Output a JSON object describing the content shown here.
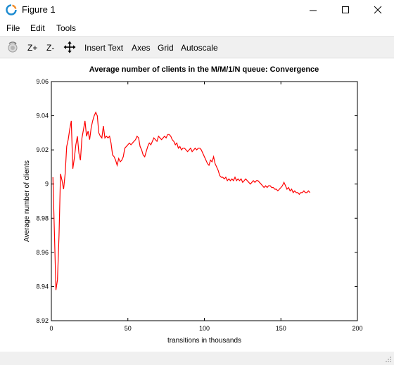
{
  "window": {
    "title": "Figure 1",
    "icon": "octave-logo-icon"
  },
  "menu": {
    "file": "File",
    "edit": "Edit",
    "tools": "Tools"
  },
  "toolbar": {
    "rotate_icon": "rotate-icon",
    "zoom_in": "Z+",
    "zoom_out": "Z-",
    "pan_icon": "pan-arrows-icon",
    "insert_text": "Insert Text",
    "axes": "Axes",
    "grid": "Grid",
    "autoscale": "Autoscale"
  },
  "colors": {
    "series": "#ff0000",
    "toolbar_bg": "#f0f0f0"
  },
  "chart_data": {
    "type": "line",
    "title": "Average number of clients in the M/M/1/N queue: Convergence",
    "xlabel": "transitions in thousands",
    "ylabel": "Average number of clients",
    "xlim": [
      0,
      200
    ],
    "ylim": [
      8.92,
      9.06
    ],
    "xticks": [
      "0",
      "50",
      "100",
      "150",
      "200"
    ],
    "yticks": [
      "8.92",
      "8.94",
      "8.96",
      "8.98",
      "9",
      "9.02",
      "9.04",
      "9.06"
    ],
    "xtick_values": [
      0,
      50,
      100,
      150,
      200
    ],
    "ytick_values": [
      8.92,
      8.94,
      8.96,
      8.98,
      9.0,
      9.02,
      9.04,
      9.06
    ],
    "grid": false,
    "series": [
      {
        "color": "#ff0000",
        "x": [
          1,
          2,
          3,
          4,
          5,
          6,
          7,
          8,
          9,
          10,
          11,
          12,
          13,
          14,
          15,
          16,
          17,
          18,
          19,
          20,
          21,
          22,
          23,
          24,
          25,
          26,
          27,
          28,
          29,
          30,
          31,
          32,
          33,
          34,
          35,
          36,
          37,
          38,
          39,
          40,
          41,
          42,
          43,
          44,
          45,
          46,
          47,
          48,
          49,
          50,
          51,
          52,
          53,
          54,
          55,
          56,
          57,
          58,
          59,
          60,
          61,
          62,
          63,
          64,
          65,
          66,
          67,
          68,
          69,
          70,
          71,
          72,
          73,
          74,
          75,
          76,
          77,
          78,
          79,
          80,
          81,
          82,
          83,
          84,
          85,
          86,
          87,
          88,
          89,
          90,
          91,
          92,
          93,
          94,
          95,
          96,
          97,
          98,
          99,
          100,
          101,
          102,
          103,
          104,
          105,
          106,
          107,
          108,
          109,
          110,
          111,
          112,
          113,
          114,
          115,
          116,
          117,
          118,
          119,
          120,
          121,
          122,
          123,
          124,
          125,
          126,
          127,
          128,
          129,
          130,
          131,
          132,
          133,
          134,
          135,
          136,
          137,
          138,
          139,
          140,
          141,
          142,
          143,
          144,
          145,
          146,
          147,
          148,
          149,
          150,
          151,
          152,
          153,
          154,
          155,
          156,
          157,
          158,
          159,
          160,
          161,
          162,
          163,
          164,
          165,
          166,
          167,
          168,
          169
        ],
        "y": [
          9.004,
          8.972,
          8.938,
          8.944,
          8.97,
          9.006,
          9.002,
          8.997,
          9.006,
          9.022,
          9.026,
          9.032,
          9.037,
          9.009,
          9.015,
          9.023,
          9.028,
          9.018,
          9.014,
          9.027,
          9.032,
          9.037,
          9.028,
          9.031,
          9.026,
          9.033,
          9.037,
          9.04,
          9.042,
          9.04,
          9.03,
          9.028,
          9.027,
          9.034,
          9.027,
          9.028,
          9.027,
          9.028,
          9.024,
          9.017,
          9.016,
          9.014,
          9.011,
          9.015,
          9.013,
          9.014,
          9.016,
          9.021,
          9.022,
          9.023,
          9.024,
          9.023,
          9.024,
          9.025,
          9.026,
          9.028,
          9.027,
          9.022,
          9.02,
          9.017,
          9.016,
          9.019,
          9.022,
          9.024,
          9.023,
          9.025,
          9.027,
          9.026,
          9.025,
          9.028,
          9.027,
          9.026,
          9.027,
          9.028,
          9.027,
          9.029,
          9.029,
          9.028,
          9.026,
          9.025,
          9.023,
          9.024,
          9.021,
          9.022,
          9.02,
          9.021,
          9.021,
          9.02,
          9.019,
          9.02,
          9.021,
          9.019,
          9.02,
          9.021,
          9.02,
          9.021,
          9.021,
          9.02,
          9.018,
          9.016,
          9.014,
          9.012,
          9.011,
          9.014,
          9.013,
          9.016,
          9.012,
          9.01,
          9.008,
          9.005,
          9.004,
          9.004,
          9.003,
          9.004,
          9.002,
          9.003,
          9.002,
          9.003,
          9.002,
          9.004,
          9.002,
          9.003,
          9.002,
          9.003,
          9.001,
          9.002,
          9.003,
          9.002,
          9.001,
          9.0,
          9.001,
          9.002,
          9.001,
          9.002,
          9.002,
          9.001,
          9.0,
          8.999,
          8.998,
          8.999,
          8.998,
          8.999,
          8.999,
          8.998,
          8.998,
          8.997,
          8.997,
          8.996,
          8.997,
          8.998,
          8.999,
          9.001,
          8.999,
          8.997,
          8.998,
          8.996,
          8.997,
          8.995,
          8.996,
          8.995,
          8.995,
          8.994,
          8.995,
          8.995,
          8.996,
          8.995,
          8.995,
          8.996,
          8.995
        ]
      }
    ]
  }
}
